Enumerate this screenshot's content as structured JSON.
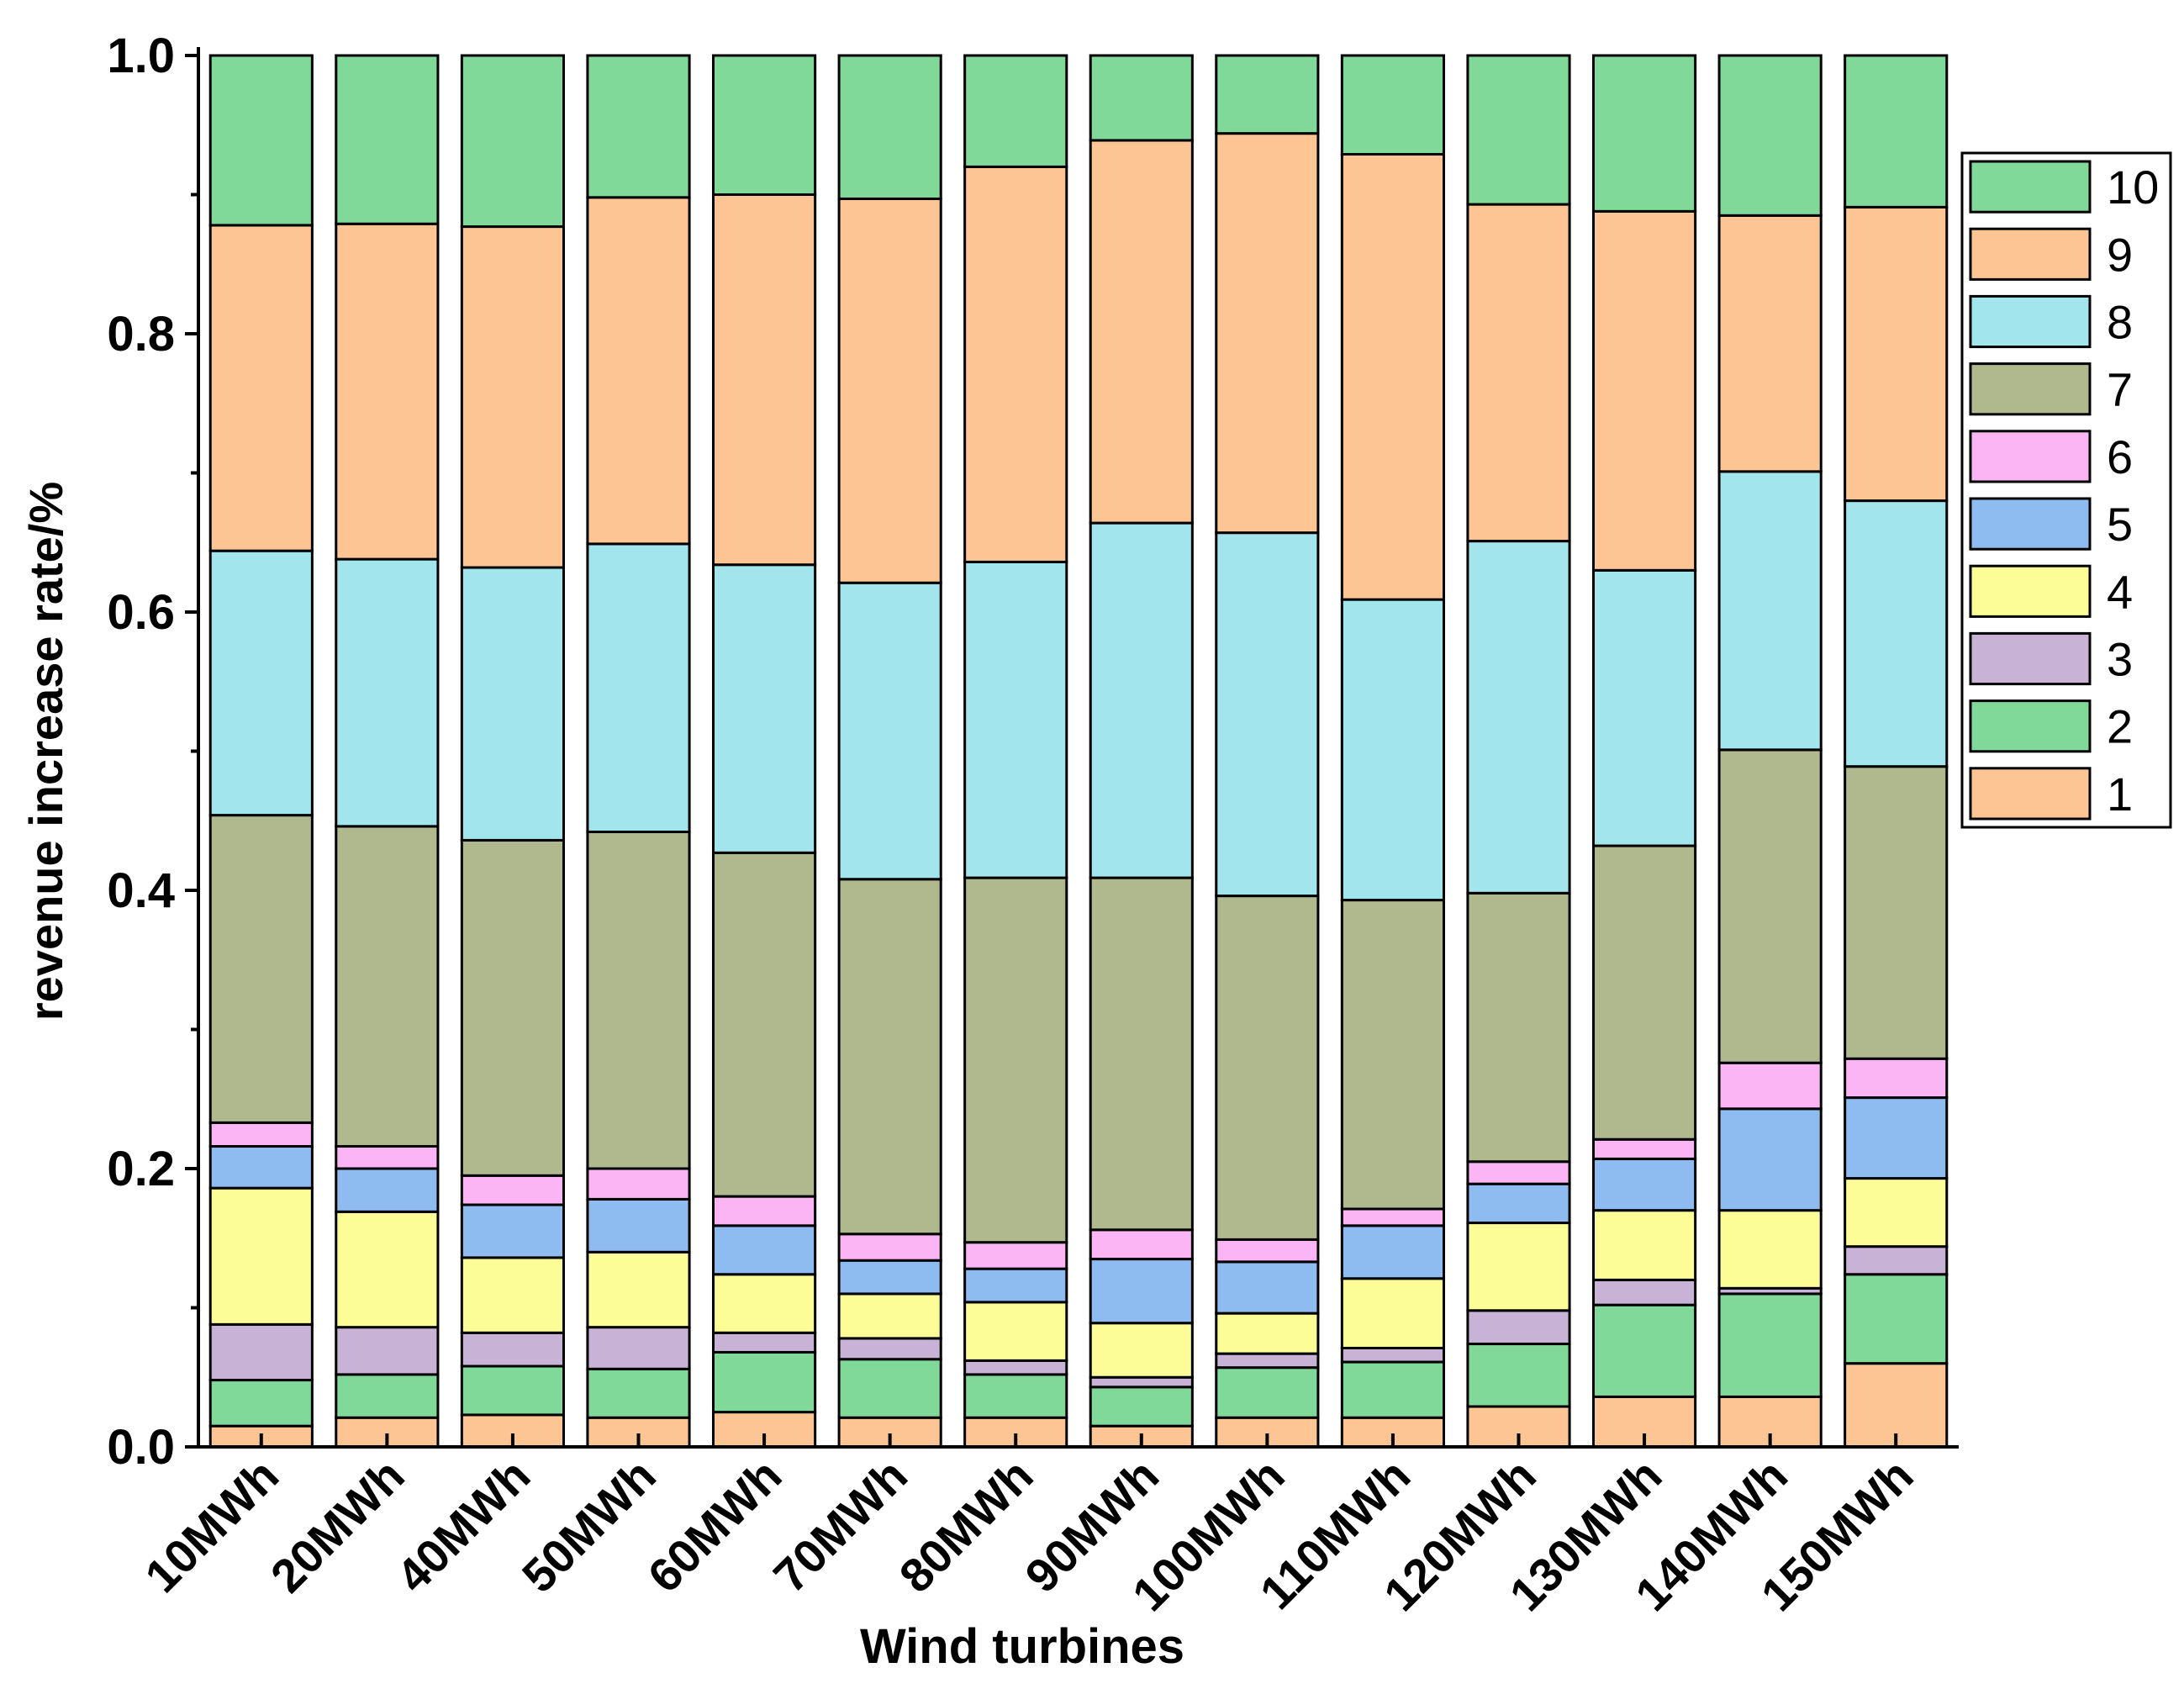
{
  "chart_data": {
    "type": "bar",
    "stacked": true,
    "title": "",
    "xlabel": "Wind turbines",
    "ylabel": "revenue increase rate/%",
    "ylim": [
      0,
      1.0
    ],
    "yticks": [
      0.0,
      0.2,
      0.4,
      0.6,
      0.8,
      1.0
    ],
    "ytick_labels": [
      "0.0",
      "0.2",
      "0.4",
      "0.6",
      "0.8",
      "1.0"
    ],
    "legend_position": "right-top",
    "categories": [
      "10MWh",
      "20MWh",
      "40MWh",
      "50MWh",
      "60MWh",
      "70MWh",
      "80MWh",
      "90MWh",
      "100MWh",
      "110MWh",
      "120MWh",
      "130MWh",
      "140MWh",
      "150MWh"
    ],
    "series": [
      {
        "name": "1",
        "color": "#fdc593",
        "values": [
          0.015,
          0.021,
          0.023,
          0.021,
          0.025,
          0.021,
          0.021,
          0.015,
          0.021,
          0.021,
          0.029,
          0.036,
          0.036,
          0.06
        ]
      },
      {
        "name": "2",
        "color": "#80d899",
        "values": [
          0.033,
          0.031,
          0.035,
          0.035,
          0.043,
          0.042,
          0.031,
          0.028,
          0.036,
          0.04,
          0.045,
          0.066,
          0.074,
          0.064
        ]
      },
      {
        "name": "3",
        "color": "#c8b3d6",
        "values": [
          0.04,
          0.034,
          0.024,
          0.03,
          0.014,
          0.015,
          0.01,
          0.007,
          0.01,
          0.01,
          0.024,
          0.018,
          0.004,
          0.02
        ]
      },
      {
        "name": "4",
        "color": "#fdfd98",
        "values": [
          0.098,
          0.083,
          0.054,
          0.054,
          0.042,
          0.032,
          0.042,
          0.039,
          0.029,
          0.05,
          0.063,
          0.05,
          0.056,
          0.049
        ]
      },
      {
        "name": "5",
        "color": "#8ebcf1",
        "values": [
          0.03,
          0.031,
          0.038,
          0.038,
          0.035,
          0.024,
          0.024,
          0.046,
          0.037,
          0.038,
          0.028,
          0.037,
          0.073,
          0.058
        ]
      },
      {
        "name": "6",
        "color": "#fbb5f4",
        "values": [
          0.017,
          0.016,
          0.021,
          0.022,
          0.021,
          0.019,
          0.019,
          0.021,
          0.016,
          0.012,
          0.016,
          0.014,
          0.033,
          0.028
        ]
      },
      {
        "name": "7",
        "color": "#b0b88e",
        "values": [
          0.221,
          0.23,
          0.241,
          0.242,
          0.247,
          0.255,
          0.262,
          0.253,
          0.247,
          0.222,
          0.193,
          0.211,
          0.225,
          0.21
        ]
      },
      {
        "name": "8",
        "color": "#a2e5ec",
        "values": [
          0.19,
          0.192,
          0.196,
          0.207,
          0.207,
          0.213,
          0.227,
          0.255,
          0.261,
          0.216,
          0.253,
          0.198,
          0.2,
          0.191
        ]
      },
      {
        "name": "9",
        "color": "#fdc593",
        "values": [
          0.234,
          0.241,
          0.245,
          0.249,
          0.266,
          0.276,
          0.284,
          0.275,
          0.287,
          0.32,
          0.242,
          0.258,
          0.184,
          0.211
        ]
      },
      {
        "name": "10",
        "color": "#80d899",
        "values": [
          0.122,
          0.121,
          0.123,
          0.102,
          0.1,
          0.103,
          0.08,
          0.061,
          0.056,
          0.071,
          0.107,
          0.112,
          0.115,
          0.109
        ]
      }
    ]
  }
}
